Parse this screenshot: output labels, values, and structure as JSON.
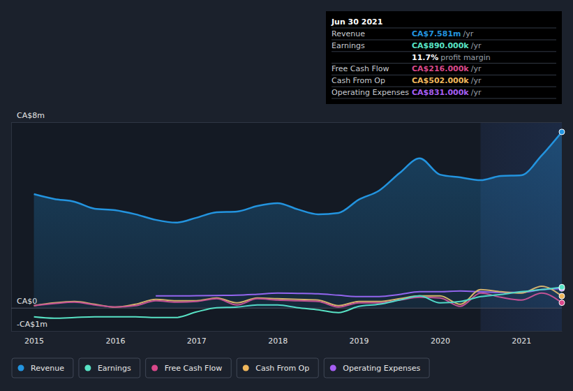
{
  "chart_data": {
    "type": "line",
    "x": [
      2015,
      2015.25,
      2015.5,
      2015.75,
      2016,
      2016.25,
      2016.5,
      2016.75,
      2017,
      2017.25,
      2017.5,
      2017.75,
      2018,
      2018.25,
      2018.5,
      2018.75,
      2019,
      2019.25,
      2019.5,
      2019.75,
      2020,
      2020.25,
      2020.5,
      2020.75,
      2021,
      2021.25,
      2021.5
    ],
    "xlim": [
      2014.72,
      2021.5
    ],
    "xticks": [
      2015,
      2016,
      2017,
      2018,
      2019,
      2020,
      2021
    ],
    "ylim": [
      -1,
      8
    ],
    "yticks": [
      {
        "value": -1,
        "label": "-CA$1m"
      },
      {
        "value": 0,
        "label": "CA$0"
      },
      {
        "value": 8,
        "label": "CA$8m"
      }
    ],
    "grid": true,
    "legend": "bottom",
    "series": [
      {
        "name": "Revenue",
        "color": "#2394df",
        "type": "area",
        "values": [
          4.9,
          4.69,
          4.57,
          4.27,
          4.21,
          4.03,
          3.79,
          3.67,
          3.88,
          4.12,
          4.15,
          4.39,
          4.51,
          4.24,
          4.03,
          4.09,
          4.66,
          5.05,
          5.8,
          6.44,
          5.74,
          5.62,
          5.5,
          5.68,
          5.71,
          6.56,
          7.581
        ]
      },
      {
        "name": "Earnings",
        "color": "#58e3c5",
        "type": "line",
        "values": [
          -0.39,
          -0.45,
          -0.42,
          -0.39,
          -0.39,
          -0.39,
          -0.42,
          -0.42,
          -0.18,
          0,
          0.03,
          0.12,
          0.12,
          0,
          -0.09,
          -0.21,
          0.06,
          0.15,
          0.33,
          0.51,
          0.21,
          0.27,
          0.48,
          0.57,
          0.69,
          0.78,
          0.89
        ]
      },
      {
        "name": "Free Cash Flow",
        "color": "#d9488a",
        "type": "line",
        "values": [
          0.09,
          0.18,
          0.24,
          0.12,
          0.03,
          0.09,
          0.3,
          0.24,
          0.27,
          0.39,
          0.12,
          0.39,
          0.33,
          0.3,
          0.27,
          0.03,
          0.21,
          0.21,
          0.33,
          0.45,
          0.42,
          0.06,
          0.63,
          0.45,
          0.33,
          0.63,
          0.216
        ]
      },
      {
        "name": "Cash From Op",
        "color": "#f0b75c",
        "type": "line",
        "values": [
          0.09,
          0.21,
          0.27,
          0.15,
          0.03,
          0.15,
          0.36,
          0.3,
          0.3,
          0.42,
          0.21,
          0.42,
          0.39,
          0.36,
          0.33,
          0.09,
          0.27,
          0.27,
          0.39,
          0.51,
          0.51,
          0.15,
          0.78,
          0.69,
          0.63,
          0.93,
          0.502
        ]
      },
      {
        "name": "Operating Expenses",
        "color": "#a55ef2",
        "type": "line",
        "values": [
          null,
          null,
          null,
          null,
          null,
          null,
          0.51,
          0.51,
          0.52,
          0.53,
          0.54,
          0.58,
          0.63,
          0.62,
          0.6,
          0.54,
          0.48,
          0.48,
          0.57,
          0.69,
          0.69,
          0.72,
          0.69,
          0.66,
          0.66,
          0.78,
          0.831
        ]
      }
    ],
    "annotations": {
      "date": "Jun 30 2021",
      "values": [
        "CA$7.581m",
        "CA$890.000k",
        "CA$216.000k",
        "CA$502.000k",
        "CA$831.000k"
      ],
      "unit": "/yr",
      "profit_margin": "11.7%",
      "profit_margin_text": "profit margin"
    }
  }
}
